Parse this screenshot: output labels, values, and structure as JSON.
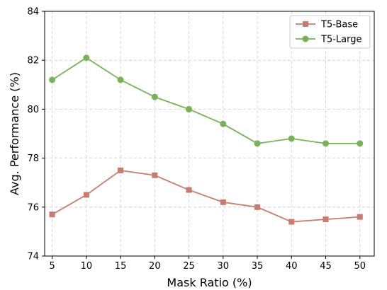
{
  "chart_data": {
    "type": "line",
    "xlabel": "Mask Ratio (%)",
    "ylabel": "Avg. Performance (%)",
    "x": [
      5,
      10,
      15,
      20,
      25,
      30,
      35,
      40,
      45,
      50
    ],
    "xticks": [
      "5",
      "10",
      "15",
      "20",
      "25",
      "30",
      "35",
      "40",
      "45",
      "50"
    ],
    "yticks": [
      "74",
      "76",
      "78",
      "80",
      "82",
      "84"
    ],
    "ylim": [
      74,
      84
    ],
    "grid": true,
    "legend_position": "top-right",
    "series": [
      {
        "name": "T5-Base",
        "marker": "square",
        "color": "#c97b6e",
        "values": [
          75.7,
          76.5,
          77.5,
          77.3,
          76.7,
          76.2,
          76.0,
          75.4,
          75.5,
          75.6
        ]
      },
      {
        "name": "T5-Large",
        "marker": "circle",
        "color": "#77b255",
        "values": [
          81.2,
          82.1,
          81.2,
          80.5,
          80.0,
          79.4,
          78.6,
          78.8,
          78.6,
          78.6
        ]
      }
    ]
  }
}
